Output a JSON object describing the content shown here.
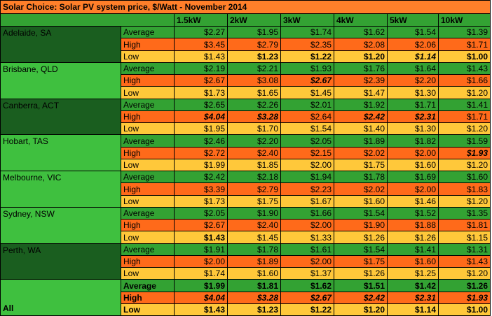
{
  "colors": {
    "title_bg": "#ff7f2a",
    "header_bg": "#33a233",
    "city_dark": "#1a5e1f",
    "city_light": "#3fc03f",
    "average": "#33a233",
    "high": "#ff6a1a",
    "low": "#ffc83a",
    "text": "#000000"
  },
  "title": "Solar Choice: Solar PV system price, $/Watt - November 2014",
  "columns": [
    "1.5kW",
    "2kW",
    "3kW",
    "4kW",
    "5kW",
    "10kW"
  ],
  "regions": [
    {
      "name": "Adelaide, SA",
      "shade": "dark",
      "rows": [
        {
          "label": "Average",
          "kind": "average",
          "values": [
            "$2.27",
            "$1.95",
            "$1.74",
            "$1.62",
            "$1.54",
            "$1.39"
          ],
          "styles": [
            "",
            "",
            "",
            "",
            "",
            ""
          ]
        },
        {
          "label": "High",
          "kind": "high",
          "values": [
            "$3.45",
            "$2.79",
            "$2.35",
            "$2.08",
            "$2.06",
            "$1.71"
          ],
          "styles": [
            "",
            "",
            "",
            "",
            "",
            ""
          ]
        },
        {
          "label": "Low",
          "kind": "low",
          "values": [
            "$1.43",
            "$1.23",
            "$1.22",
            "$1.20",
            "$1.14",
            "$1.00"
          ],
          "styles": [
            "",
            "bold",
            "bold",
            "bold",
            "bi",
            "bold"
          ]
        }
      ]
    },
    {
      "name": "Brisbane, QLD",
      "shade": "light",
      "rows": [
        {
          "label": "Average",
          "kind": "average",
          "values": [
            "$2.19",
            "$2.21",
            "$1.93",
            "$1.76",
            "$1.64",
            "$1.43"
          ],
          "styles": [
            "",
            "",
            "",
            "",
            "",
            ""
          ]
        },
        {
          "label": "High",
          "kind": "high",
          "values": [
            "$2.67",
            "$3.08",
            "$2.67",
            "$2.39",
            "$2.20",
            "$1.66"
          ],
          "styles": [
            "",
            "",
            "bi",
            "",
            "",
            ""
          ]
        },
        {
          "label": "Low",
          "kind": "low",
          "values": [
            "$1.73",
            "$1.65",
            "$1.45",
            "$1.47",
            "$1.30",
            "$1.20"
          ],
          "styles": [
            "",
            "",
            "",
            "",
            "",
            ""
          ]
        }
      ]
    },
    {
      "name": "Canberra, ACT",
      "shade": "dark",
      "rows": [
        {
          "label": "Average",
          "kind": "average",
          "values": [
            "$2.65",
            "$2.26",
            "$2.01",
            "$1.92",
            "$1.71",
            "$1.41"
          ],
          "styles": [
            "",
            "",
            "",
            "",
            "",
            ""
          ]
        },
        {
          "label": "High",
          "kind": "high",
          "values": [
            "$4.04",
            "$3.28",
            "$2.64",
            "$2.42",
            "$2.31",
            "$1.71"
          ],
          "styles": [
            "bi",
            "bi",
            "",
            "bi",
            "bi",
            ""
          ]
        },
        {
          "label": "Low",
          "kind": "low",
          "values": [
            "$1.95",
            "$1.70",
            "$1.54",
            "$1.40",
            "$1.30",
            "$1.20"
          ],
          "styles": [
            "",
            "",
            "",
            "",
            "",
            ""
          ]
        }
      ]
    },
    {
      "name": "Hobart, TAS",
      "shade": "light",
      "rows": [
        {
          "label": "Average",
          "kind": "average",
          "values": [
            "$2.46",
            "$2.20",
            "$2.05",
            "$1.89",
            "$1.82",
            "$1.59"
          ],
          "styles": [
            "",
            "",
            "",
            "",
            "",
            ""
          ]
        },
        {
          "label": "High",
          "kind": "high",
          "values": [
            "$2.72",
            "$2.40",
            "$2.15",
            "$2.02",
            "$2.00",
            "$1.93"
          ],
          "styles": [
            "",
            "",
            "",
            "",
            "",
            "bi"
          ]
        },
        {
          "label": "Low",
          "kind": "low",
          "values": [
            "$1.99",
            "$1.85",
            "$2.00",
            "$1.75",
            "$1.60",
            "$1.20"
          ],
          "styles": [
            "",
            "",
            "",
            "",
            "",
            ""
          ]
        }
      ]
    },
    {
      "name": "Melbourne, VIC",
      "shade": "light",
      "rows": [
        {
          "label": "Average",
          "kind": "average",
          "values": [
            "$2.42",
            "$2.18",
            "$1.94",
            "$1.78",
            "$1.69",
            "$1.60"
          ],
          "styles": [
            "",
            "",
            "",
            "",
            "",
            ""
          ]
        },
        {
          "label": "High",
          "kind": "high",
          "values": [
            "$3.39",
            "$2.79",
            "$2.23",
            "$2.02",
            "$2.00",
            "$1.83"
          ],
          "styles": [
            "",
            "",
            "",
            "",
            "",
            ""
          ]
        },
        {
          "label": "Low",
          "kind": "low",
          "values": [
            "$1.73",
            "$1.75",
            "$1.67",
            "$1.60",
            "$1.46",
            "$1.20"
          ],
          "styles": [
            "",
            "",
            "",
            "",
            "",
            ""
          ]
        }
      ]
    },
    {
      "name": "Sydney, NSW",
      "shade": "light",
      "rows": [
        {
          "label": "Average",
          "kind": "average",
          "values": [
            "$2.05",
            "$1.90",
            "$1.66",
            "$1.54",
            "$1.52",
            "$1.35"
          ],
          "styles": [
            "",
            "",
            "",
            "",
            "",
            ""
          ]
        },
        {
          "label": "High",
          "kind": "high",
          "values": [
            "$2.67",
            "$2.40",
            "$2.00",
            "$1.90",
            "$1.88",
            "$1.81"
          ],
          "styles": [
            "",
            "",
            "",
            "",
            "",
            ""
          ]
        },
        {
          "label": "Low",
          "kind": "low",
          "values": [
            "$1.43",
            "$1.45",
            "$1.33",
            "$1.26",
            "$1.26",
            "$1.15"
          ],
          "styles": [
            "bold",
            "",
            "",
            "",
            "",
            ""
          ]
        }
      ]
    },
    {
      "name": "Perth, WA",
      "shade": "dark",
      "rows": [
        {
          "label": "Average",
          "kind": "average",
          "values": [
            "$1.91",
            "$1.78",
            "$1.61",
            "$1.54",
            "$1.41",
            "$1.31"
          ],
          "styles": [
            "",
            "",
            "",
            "",
            "",
            ""
          ]
        },
        {
          "label": "High",
          "kind": "high",
          "values": [
            "$2.00",
            "$1.89",
            "$2.00",
            "$1.75",
            "$1.60",
            "$1.43"
          ],
          "styles": [
            "",
            "",
            "",
            "",
            "",
            ""
          ]
        },
        {
          "label": "Low",
          "kind": "low",
          "values": [
            "$1.74",
            "$1.60",
            "$1.37",
            "$1.26",
            "$1.25",
            "$1.20"
          ],
          "styles": [
            "",
            "",
            "",
            "",
            "",
            ""
          ]
        }
      ]
    },
    {
      "name": "All",
      "shade": "light",
      "summary": true,
      "rows": [
        {
          "label": "Average",
          "kind": "average",
          "values": [
            "$1.99",
            "$1.81",
            "$1.62",
            "$1.51",
            "$1.42",
            "$1.26"
          ],
          "styles": [
            "bold",
            "bold",
            "bold",
            "bold",
            "bold",
            "bold"
          ]
        },
        {
          "label": "High",
          "kind": "high",
          "values": [
            "$4.04",
            "$3.28",
            "$2.67",
            "$2.42",
            "$2.31",
            "$1.93"
          ],
          "styles": [
            "bi",
            "bi",
            "bi",
            "bi",
            "bi",
            "bi"
          ]
        },
        {
          "label": "Low",
          "kind": "low",
          "values": [
            "$1.43",
            "$1.23",
            "$1.22",
            "$1.20",
            "$1.14",
            "$1.00"
          ],
          "styles": [
            "bold",
            "bold",
            "bold",
            "bold",
            "bold",
            "bold"
          ]
        }
      ]
    }
  ]
}
